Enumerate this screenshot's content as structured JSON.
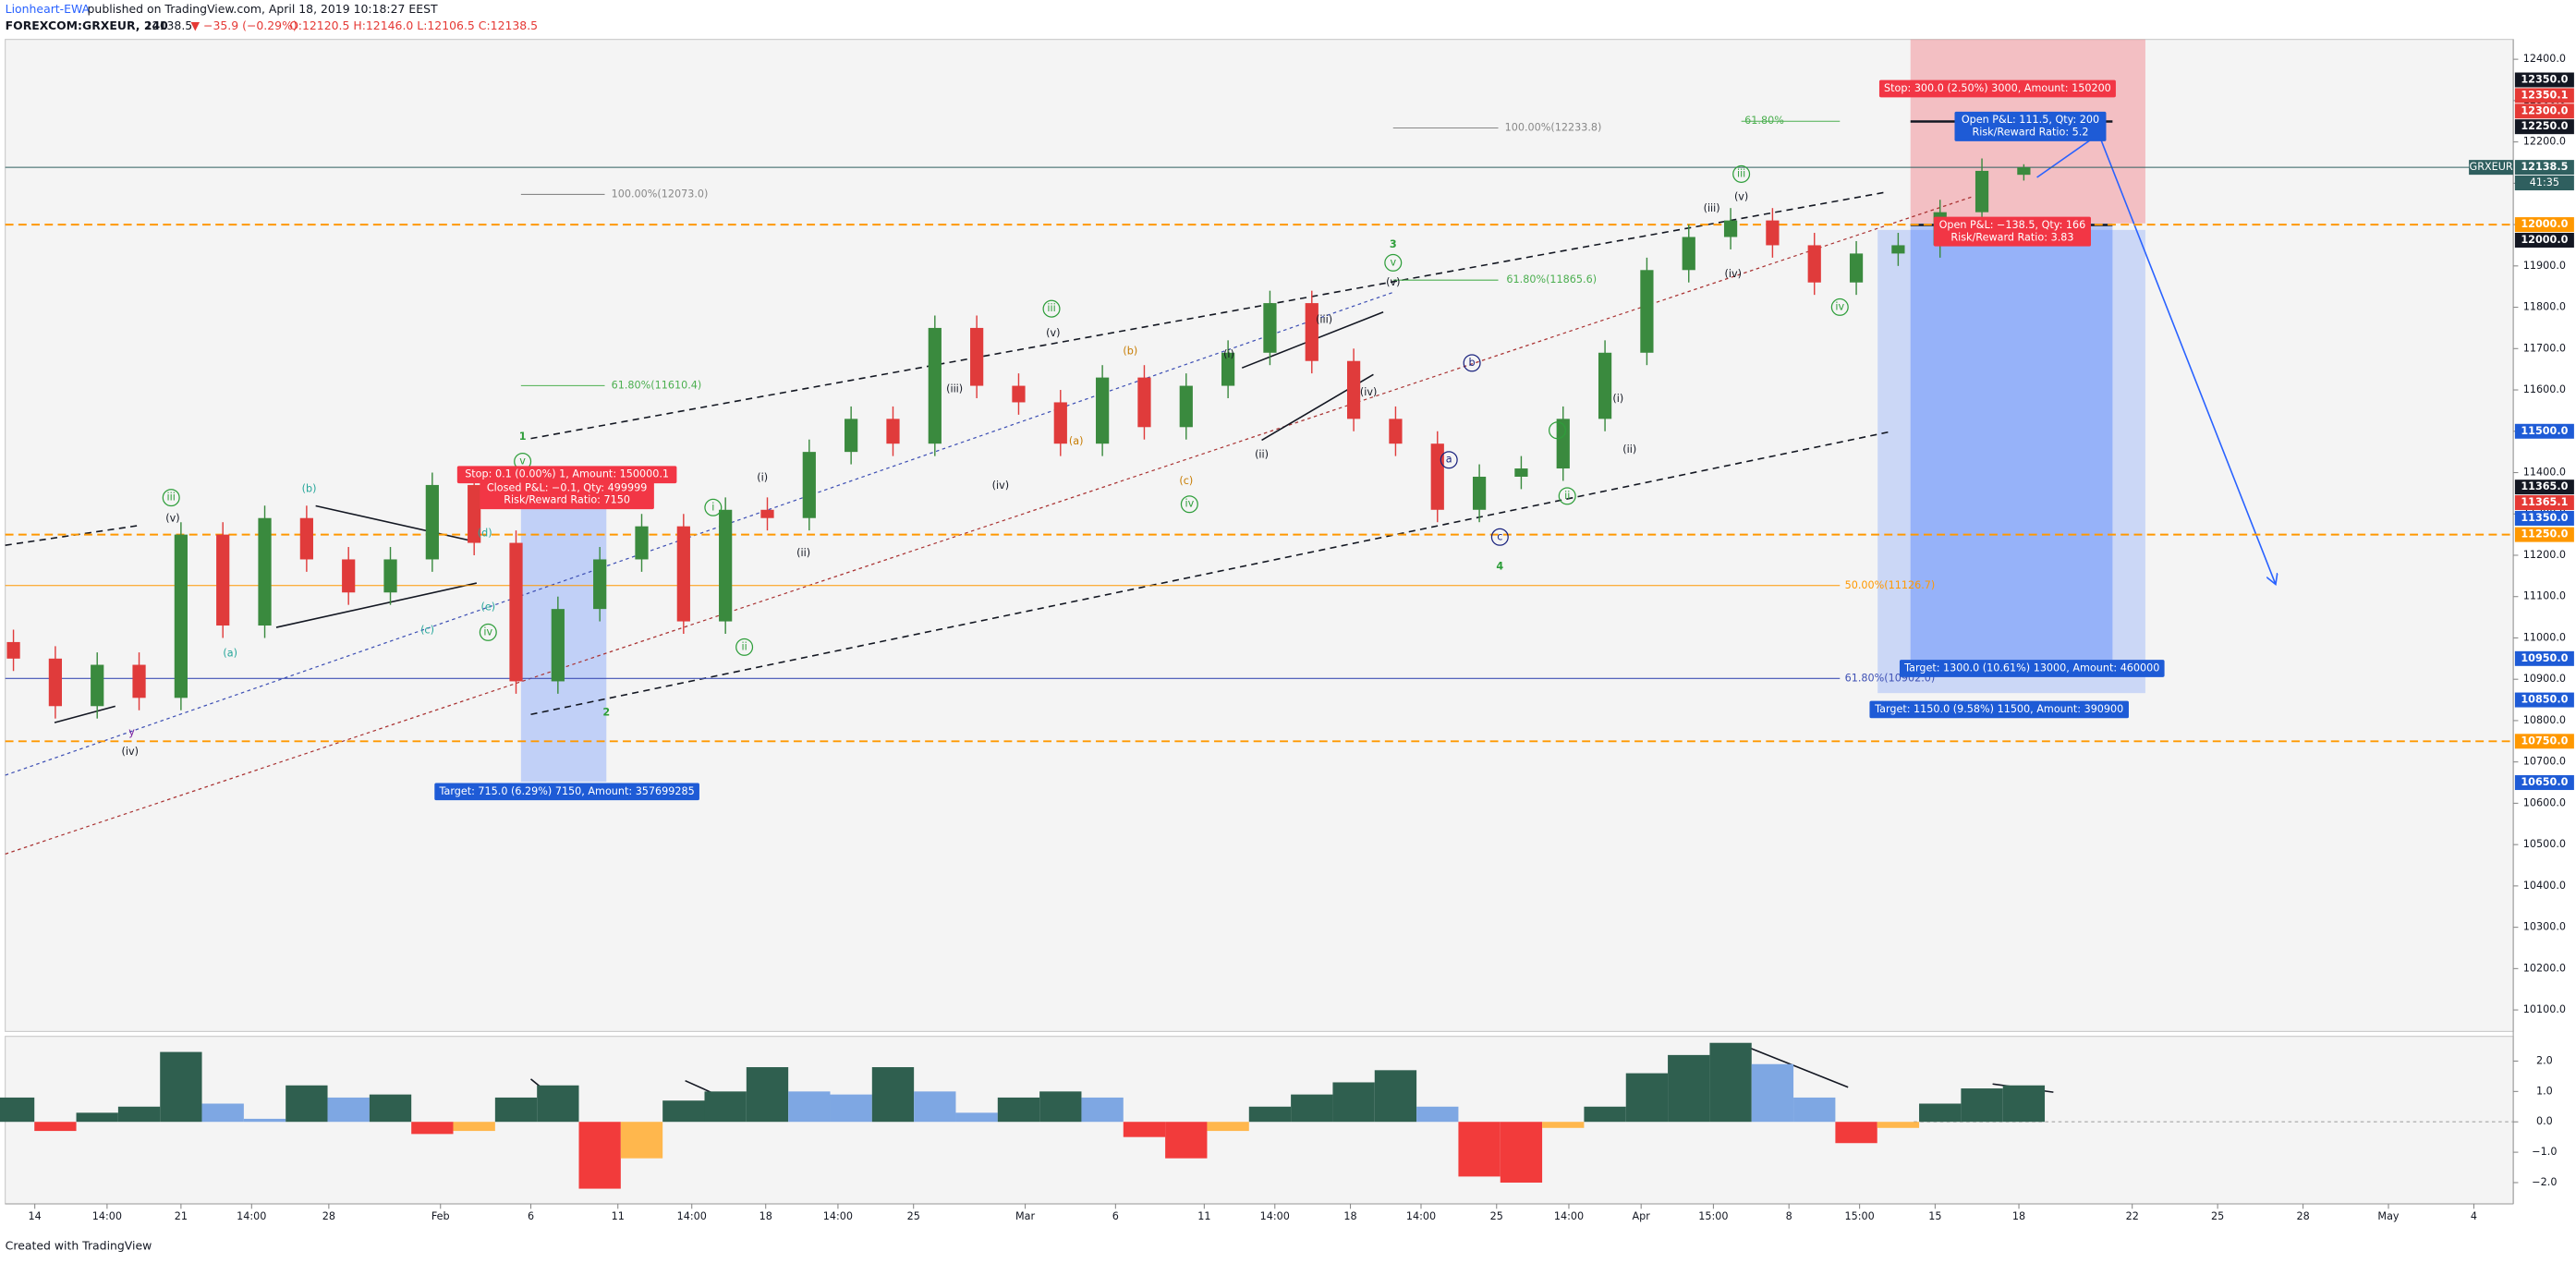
{
  "header": {
    "author": "Lionheart-EWA",
    "published": "published on TradingView.com, April 18, 2019 10:18:27 EEST",
    "symbol": "FOREXCOM:GRXEUR, 240",
    "last": "12138.5",
    "change": "▼ −35.9 (−0.29%)",
    "ohlc": "O:12120.5 H:12146.0 L:12106.5 C:12138.5"
  },
  "chart_data": [
    {
      "type": "candlestick",
      "up_color": "#3a8a3e",
      "down_color": "#e03b3b",
      "open": [
        10990,
        10950,
        10835,
        10935,
        10855,
        11250,
        11030,
        11290,
        11190,
        11110,
        11190,
        11370,
        11230,
        10895,
        11070,
        11190,
        11270,
        11040,
        11310,
        11290,
        11450,
        11530,
        11470,
        11750,
        11610,
        11570,
        11470,
        11630,
        11510,
        11610,
        11690,
        11810,
        11670,
        11530,
        11470,
        11310,
        11390,
        11410,
        11530,
        11690,
        11890,
        11970,
        12010,
        11950,
        11860,
        11930,
        11950,
        12030,
        12120.5
      ],
      "high": [
        11020,
        10980,
        10965,
        10965,
        11280,
        11280,
        11320,
        11320,
        11220,
        11220,
        11400,
        11400,
        11260,
        11100,
        11220,
        11300,
        11300,
        11340,
        11340,
        11480,
        11560,
        11560,
        11780,
        11780,
        11640,
        11600,
        11660,
        11660,
        11640,
        11720,
        11840,
        11840,
        11700,
        11560,
        11500,
        11420,
        11440,
        11560,
        11720,
        11920,
        12000,
        12040,
        12040,
        11980,
        11960,
        11980,
        12060,
        12160,
        12146
      ],
      "low": [
        10920,
        10805,
        10805,
        10825,
        10825,
        11000,
        11000,
        11160,
        11080,
        11080,
        11160,
        11200,
        10865,
        10865,
        11040,
        11160,
        11010,
        11010,
        11260,
        11260,
        11420,
        11440,
        11440,
        11580,
        11540,
        11440,
        11440,
        11480,
        11480,
        11580,
        11660,
        11640,
        11500,
        11440,
        11280,
        11280,
        11360,
        11380,
        11500,
        11660,
        11860,
        11940,
        11920,
        11830,
        11830,
        11900,
        11920,
        12000,
        12106.5
      ],
      "close": [
        10950,
        10835,
        10935,
        10855,
        11250,
        11030,
        11290,
        11190,
        11110,
        11190,
        11370,
        11230,
        10895,
        11070,
        11190,
        11270,
        11040,
        11310,
        11290,
        11450,
        11530,
        11470,
        11750,
        11610,
        11570,
        11470,
        11630,
        11510,
        11610,
        11690,
        11810,
        11670,
        11530,
        11470,
        11310,
        11390,
        11410,
        11530,
        11690,
        11890,
        11970,
        12010,
        11950,
        11860,
        11930,
        11950,
        12030,
        12130,
        12138.5
      ],
      "ylim": [
        10048,
        12448
      ],
      "yticks": [
        {
          "value": 10100,
          "label": "10100.0"
        },
        {
          "value": 10200,
          "label": "10200.0"
        },
        {
          "value": 10300,
          "label": "10300.0"
        },
        {
          "value": 10400,
          "label": "10400.0"
        },
        {
          "value": 10500,
          "label": "10500.0"
        },
        {
          "value": 10600,
          "label": "10600.0"
        },
        {
          "value": 10700,
          "label": "10700.0"
        },
        {
          "value": 10800,
          "label": "10800.0"
        },
        {
          "value": 10900,
          "label": "10900.0"
        },
        {
          "value": 11000,
          "label": "11000.0"
        },
        {
          "value": 11100,
          "label": "11100.0"
        },
        {
          "value": 11200,
          "label": "11200.0"
        },
        {
          "value": 11300,
          "label": "11300.0"
        },
        {
          "value": 11400,
          "label": "11400.0"
        },
        {
          "value": 11500,
          "label": "11500.0"
        },
        {
          "value": 11600,
          "label": "11600.0"
        },
        {
          "value": 11700,
          "label": "11700.0"
        },
        {
          "value": 11800,
          "label": "11800.0"
        },
        {
          "value": 11900,
          "label": "11900.0"
        },
        {
          "value": 12000,
          "label": "12000.0"
        },
        {
          "value": 12100,
          "label": "12100.0"
        },
        {
          "value": 12200,
          "label": "12200.0"
        },
        {
          "value": 12300,
          "label": "12300.0"
        },
        {
          "value": 12400,
          "label": "12400.0"
        }
      ],
      "x_tick_labels": [
        "14",
        "14:00",
        "21",
        "14:00",
        "28",
        "Feb",
        "6",
        "11",
        "14:00",
        "18",
        "14:00",
        "25",
        "Mar",
        "6",
        "11",
        "14:00",
        "18",
        "14:00",
        "25",
        "14:00",
        "Apr",
        "15:00",
        "8",
        "15:00",
        "15",
        "18",
        "22",
        "25",
        "28",
        "May",
        "4"
      ],
      "symbol_tag": "GRXEUR",
      "price_labels": [
        {
          "value": 12350,
          "label": "12350.0",
          "color": "#131722"
        },
        {
          "value": 12350.1,
          "label": "12350.1",
          "color": "#e53935"
        },
        {
          "value": 12300,
          "label": "12300.0",
          "color": "#e53935"
        },
        {
          "value": 12250,
          "label": "12250.0",
          "color": "#131722"
        },
        {
          "value": 12138.5,
          "label": "12138.5",
          "color": "#2f5f5f",
          "countdown": "41:35"
        },
        {
          "value": 12000,
          "label": "12000.0",
          "color": "#ff9800"
        },
        {
          "value": 12000,
          "label": "12000.0",
          "color": "#131722"
        },
        {
          "value": 11500,
          "label": "11500.0",
          "color": "#1e5bd6"
        },
        {
          "value": 11365,
          "label": "11365.0",
          "color": "#131722"
        },
        {
          "value": 11365.1,
          "label": "11365.1",
          "color": "#e53935"
        },
        {
          "value": 11350,
          "label": "11350.0",
          "color": "#1e5bd6"
        },
        {
          "value": 11250,
          "label": "11250.0",
          "color": "#ff9800"
        },
        {
          "value": 10950,
          "label": "10950.0",
          "color": "#1e5bd6"
        },
        {
          "value": 10850,
          "label": "10850.0",
          "color": "#1e5bd6"
        },
        {
          "value": 10750,
          "label": "10750.0",
          "color": "#ff9800"
        },
        {
          "value": 10650,
          "label": "10650.0",
          "color": "#1e5bd6"
        }
      ],
      "hlines": [
        {
          "value": 12000,
          "color": "#ff9800",
          "dashed": true
        },
        {
          "value": 11250,
          "color": "#ff9800",
          "dashed": true
        },
        {
          "value": 10750,
          "color": "#ff9800",
          "dashed": true
        },
        {
          "value": 12138.5,
          "color": "#2f5f5f",
          "dashed": false
        }
      ],
      "fibs": [
        {
          "label": "100.00%(12233.8)",
          "value": 12233.8,
          "color": "#888888"
        },
        {
          "label": "100.00%(12073.0)",
          "value": 12073.0,
          "color": "#888888"
        },
        {
          "label": "61.80%(11610.4)",
          "value": 11610.4,
          "color": "#4caf50"
        },
        {
          "label": "61.80%(11865.6)",
          "value": 11865.6,
          "color": "#4caf50"
        },
        {
          "label": "61.80%",
          "value": 12250,
          "color": "#4caf50"
        },
        {
          "label": "50.00%(11126.7)",
          "value": 11126.7,
          "color": "#ff9800"
        },
        {
          "label": "61.80%(10902.0)",
          "value": 10902.0,
          "color": "#3f51b5"
        }
      ],
      "annotations": [
        {
          "text": "(iv)",
          "color": "#131722"
        },
        {
          "text": "(v)",
          "color": "#131722"
        },
        {
          "text": "(i)",
          "color": "#131722"
        },
        {
          "text": "(ii)",
          "color": "#131722"
        },
        {
          "text": "(iii)",
          "color": "#131722"
        },
        {
          "text": "(iv)",
          "color": "#131722"
        },
        {
          "text": "(v)",
          "color": "#131722"
        },
        {
          "text": "(i)",
          "color": "#131722"
        },
        {
          "text": "(ii)",
          "color": "#131722"
        },
        {
          "text": "(iii)",
          "color": "#131722"
        },
        {
          "text": "(iv)",
          "color": "#131722"
        },
        {
          "text": "(v)",
          "color": "#131722"
        },
        {
          "text": "(iii)",
          "color": "#131722"
        },
        {
          "text": "(v)",
          "color": "#131722"
        },
        {
          "text": "(iv)",
          "color": "#131722"
        },
        {
          "text": "(i)",
          "color": "#131722"
        },
        {
          "text": "(ii)",
          "color": "#131722"
        },
        {
          "text": "1",
          "color": "#2e9e3a"
        },
        {
          "text": "2",
          "color": "#2e9e3a"
        },
        {
          "text": "3",
          "color": "#2e9e3a"
        },
        {
          "text": "4",
          "color": "#2e9e3a"
        },
        {
          "text": "iii",
          "color": "#2e9e3a",
          "circled": true
        },
        {
          "text": "v",
          "color": "#2e9e3a",
          "circled": true
        },
        {
          "text": "i",
          "color": "#2e9e3a",
          "circled": true
        },
        {
          "text": "ii",
          "color": "#2e9e3a",
          "circled": true
        },
        {
          "text": "iii",
          "color": "#2e9e3a",
          "circled": true
        },
        {
          "text": "iv",
          "color": "#2e9e3a",
          "circled": true
        },
        {
          "text": "v",
          "color": "#2e9e3a",
          "circled": true
        },
        {
          "text": "iii",
          "color": "#2e9e3a",
          "circled": true
        },
        {
          "text": "iv",
          "color": "#2e9e3a",
          "circled": true
        },
        {
          "text": "i",
          "color": "#2e9e3a",
          "circled": true
        },
        {
          "text": "ii",
          "color": "#2e9e3a",
          "circled": true
        },
        {
          "text": "iv",
          "color": "#2e9e3a",
          "circled": true
        },
        {
          "text": "(b)",
          "color": "#26a69a"
        },
        {
          "text": "(a)",
          "color": "#26a69a"
        },
        {
          "text": "(c)",
          "color": "#26a69a"
        },
        {
          "text": "(d)",
          "color": "#26a69a"
        },
        {
          "text": "(e)",
          "color": "#26a69a"
        },
        {
          "text": "(a)",
          "color": "#c77c02"
        },
        {
          "text": "(b)",
          "color": "#c77c02"
        },
        {
          "text": "(c)",
          "color": "#c77c02"
        },
        {
          "text": "a",
          "color": "#1a237e",
          "circled": true
        },
        {
          "text": "b",
          "color": "#1a237e",
          "circled": true
        },
        {
          "text": "c",
          "color": "#1a237e",
          "circled": true
        },
        {
          "text": "y",
          "color": "#7b1fa2"
        }
      ],
      "position_labels": [
        {
          "lines": [
            "Stop: 300.0 (2.50%) 3000, Amount: 150200"
          ],
          "color": "#f23645"
        },
        {
          "lines": [
            "Open P&L: 111.5, Qty: 200",
            "Risk/Reward Ratio: 5.2"
          ],
          "color": "#1e5bd6"
        },
        {
          "lines": [
            "Open P&L: −138.5, Qty: 166",
            "Risk/Reward Ratio: 3.83"
          ],
          "color": "#f23645"
        },
        {
          "lines": [
            "Target: 1300.0 (10.61%) 13000, Amount: 460000"
          ],
          "color": "#1e5bd6"
        },
        {
          "lines": [
            "Target: 1150.0 (9.58%) 11500, Amount: 390900"
          ],
          "color": "#1e5bd6"
        },
        {
          "lines": [
            "Target: 715.0 (6.29%) 7150, Amount: 357699285"
          ],
          "color": "#1e5bd6"
        },
        {
          "lines": [
            "Stop: 0.1 (0.00%) 1, Amount: 150000.1"
          ],
          "color": "#f23645"
        },
        {
          "lines": [
            "Closed P&L: −0.1, Qty: 499999",
            "Risk/Reward Ratio: 7150"
          ],
          "color": "#f23645"
        }
      ]
    },
    {
      "type": "histogram",
      "colors": {
        "pos_rising": "#2f5f4f",
        "pos_falling": "#7ea7e3",
        "neg_falling": "#f23b3b",
        "neg_rising": "#ffb74d"
      },
      "values": [
        0.8,
        -0.3,
        0.3,
        0.5,
        2.3,
        0.6,
        0.1,
        1.2,
        0.8,
        0.9,
        -0.4,
        -0.3,
        0.8,
        1.2,
        -2.2,
        -1.2,
        0.7,
        1.0,
        1.8,
        1.0,
        0.9,
        1.8,
        1.0,
        0.3,
        0.8,
        1.0,
        0.8,
        -0.5,
        -1.2,
        -0.3,
        0.5,
        0.9,
        1.3,
        1.7,
        0.5,
        -1.8,
        -2.0,
        -0.2,
        0.5,
        1.6,
        2.2,
        2.6,
        1.9,
        0.8,
        -0.7,
        -0.2,
        0.6,
        1.1,
        1.2
      ],
      "ylim": [
        -2.7,
        2.76
      ],
      "yticks": [
        {
          "value": 2,
          "label": "2.0"
        },
        {
          "value": 1,
          "label": "1.0"
        },
        {
          "value": 0,
          "label": "0.0"
        },
        {
          "value": -1,
          "label": "−1.0"
        },
        {
          "value": -2,
          "label": "−2.0"
        }
      ]
    }
  ],
  "footer": "Created with TradingView"
}
